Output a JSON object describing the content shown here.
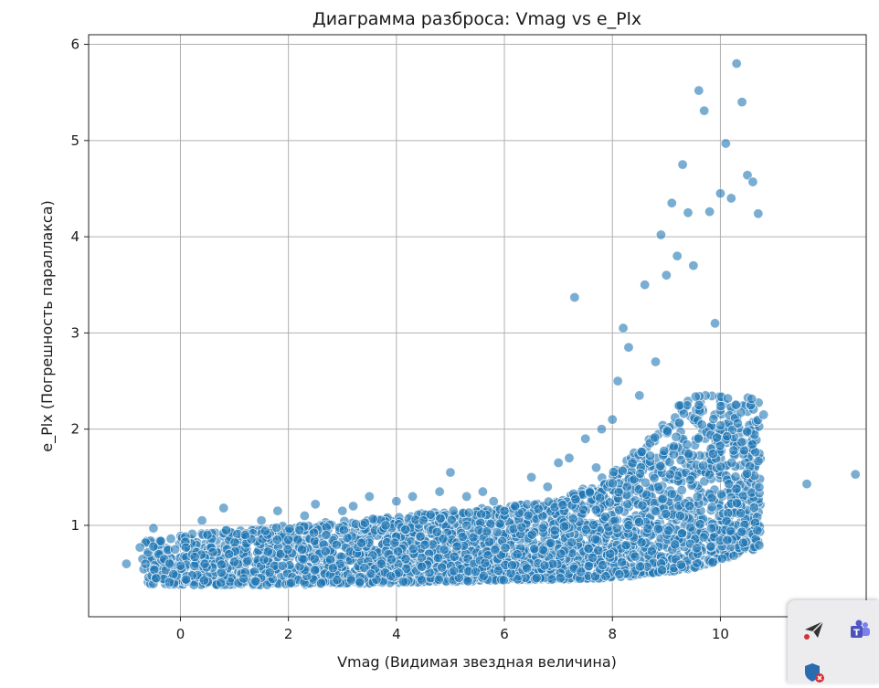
{
  "chart_data": {
    "type": "scatter",
    "title": "Диаграмма разброса: Vmag vs e_Plx",
    "xlabel": "Vmag (Видимая звездная величина)",
    "ylabel": "e_Plx (Погрешность параллакса)",
    "xlim": [
      -1.7,
      12.7
    ],
    "ylim": [
      0.05,
      6.1
    ],
    "xticks": [
      0,
      2,
      4,
      6,
      8,
      10
    ],
    "yticks": [
      1,
      2,
      3,
      4,
      5,
      6
    ],
    "grid": true,
    "point_color": "#1f77b4",
    "point_alpha": 0.6,
    "edge_color": "#ffffff",
    "density_note": "dense cloud of several thousand points; representative sample listed",
    "series": [
      {
        "x": [
          -1.0,
          -0.75,
          -0.7,
          -0.65,
          -0.6,
          -0.5,
          -0.5,
          -0.45,
          -0.4,
          -0.3,
          -0.2,
          -0.1,
          0.0,
          0.1,
          0.4,
          0.45,
          0.5,
          0.6,
          0.8,
          0.85,
          0.9,
          1.0,
          1.2,
          1.5,
          1.8,
          2.0,
          2.3,
          2.5,
          2.7,
          3.0,
          3.2,
          3.5,
          3.8,
          4.0,
          4.3,
          4.5,
          4.8,
          5.0,
          5.3,
          5.6,
          5.8,
          6.0,
          6.2,
          6.5,
          6.8,
          7.0,
          7.2,
          7.3,
          7.5,
          7.7,
          7.8,
          8.0,
          8.1,
          8.2,
          8.3,
          8.5,
          8.6,
          8.8,
          8.9,
          9.0,
          9.1,
          9.2,
          9.3,
          9.4,
          9.5,
          9.6,
          9.7,
          9.8,
          9.9,
          10.0,
          10.1,
          10.2,
          10.3,
          10.4,
          10.5,
          10.6,
          10.7,
          10.8,
          11.6,
          12.5
        ],
        "y": [
          0.6,
          0.77,
          0.65,
          0.6,
          0.72,
          0.78,
          0.97,
          0.45,
          0.7,
          0.65,
          0.6,
          0.75,
          0.58,
          0.77,
          1.05,
          0.6,
          0.9,
          0.72,
          1.18,
          0.95,
          0.7,
          0.62,
          0.9,
          1.05,
          1.15,
          0.85,
          1.1,
          1.22,
          0.9,
          1.15,
          1.2,
          1.3,
          1.0,
          1.25,
          1.3,
          1.05,
          1.35,
          1.55,
          1.3,
          1.35,
          1.25,
          1.15,
          1.2,
          1.5,
          1.4,
          1.65,
          1.7,
          3.37,
          1.9,
          1.6,
          2.0,
          2.1,
          2.5,
          3.05,
          2.85,
          2.35,
          3.5,
          2.7,
          4.02,
          3.6,
          4.35,
          3.8,
          4.75,
          4.25,
          3.7,
          5.52,
          5.31,
          4.26,
          3.1,
          4.45,
          4.97,
          4.4,
          5.8,
          5.4,
          4.64,
          4.57,
          4.24,
          2.15,
          1.43,
          1.53
        ]
      }
    ]
  },
  "tray": {
    "icons": [
      "send-icon",
      "teams-icon",
      "shield-warning-icon"
    ]
  }
}
